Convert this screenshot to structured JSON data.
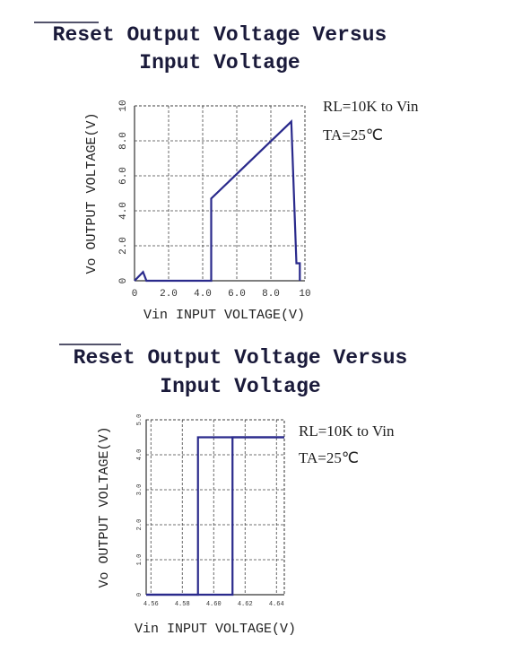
{
  "chart_data": [
    {
      "type": "line",
      "title": [
        "Reset Output Voltage Versus",
        "Input Voltage"
      ],
      "x_label": "Vin INPUT VOLTAGE(V)",
      "y_label": "Vo OUTPUT VOLTAGE(V)",
      "annotations": [
        "RL=10K to Vin",
        "TA=25℃"
      ],
      "xlim": [
        0,
        10
      ],
      "ylim": [
        0,
        10
      ],
      "xticks": [
        0,
        {
          "value": 2,
          "label": "2.0"
        },
        {
          "value": 4,
          "label": "4.0"
        },
        {
          "value": 6,
          "label": "6.0"
        },
        {
          "value": 8,
          "label": "8.0"
        },
        10
      ],
      "yticks": [
        0,
        {
          "value": 2,
          "label": "2.0"
        },
        {
          "value": 4,
          "label": "4.0"
        },
        {
          "value": 6,
          "label": "6.0"
        },
        {
          "value": 8,
          "label": "8.0"
        },
        10
      ],
      "grid": true,
      "series": [
        {
          "color": "#2a2a8c",
          "x": [
            0,
            0.5,
            0.7,
            4.5,
            4.5,
            9.2,
            9.5,
            9.7,
            9.7
          ],
          "values": [
            0,
            0.5,
            0,
            0,
            4.7,
            9.1,
            1.0,
            1.0,
            0
          ]
        }
      ]
    },
    {
      "type": "line",
      "title": [
        "Reset Output Voltage Versus",
        "Input Voltage"
      ],
      "x_label": "Vin INPUT VOLTAGE(V)",
      "y_label": "Vo OUTPUT VOLTAGE(V)",
      "annotations": [
        "RL=10K to Vin",
        "TA=25℃"
      ],
      "xlim": [
        4.557,
        4.645
      ],
      "ylim": [
        0,
        5
      ],
      "xticks": [
        4.56,
        4.58,
        {
          "value": 4.6,
          "label": "4.60"
        },
        4.62,
        4.64
      ],
      "yticks": [
        0,
        {
          "value": 1,
          "label": "1.0"
        },
        {
          "value": 2,
          "label": "2.0"
        },
        {
          "value": 3,
          "label": "3.0"
        },
        {
          "value": 4,
          "label": "4.0"
        },
        {
          "value": 5,
          "label": "5.0"
        }
      ],
      "grid": true,
      "series": [
        {
          "color": "#2a2a8c",
          "x": [
            4.557,
            4.612,
            4.612,
            4.645
          ],
          "values": [
            0,
            0,
            4.5,
            4.5
          ]
        },
        {
          "color": "#2a2a8c",
          "x": [
            4.645,
            4.59,
            4.59,
            4.557
          ],
          "values": [
            4.5,
            4.5,
            0,
            0
          ]
        }
      ]
    }
  ]
}
